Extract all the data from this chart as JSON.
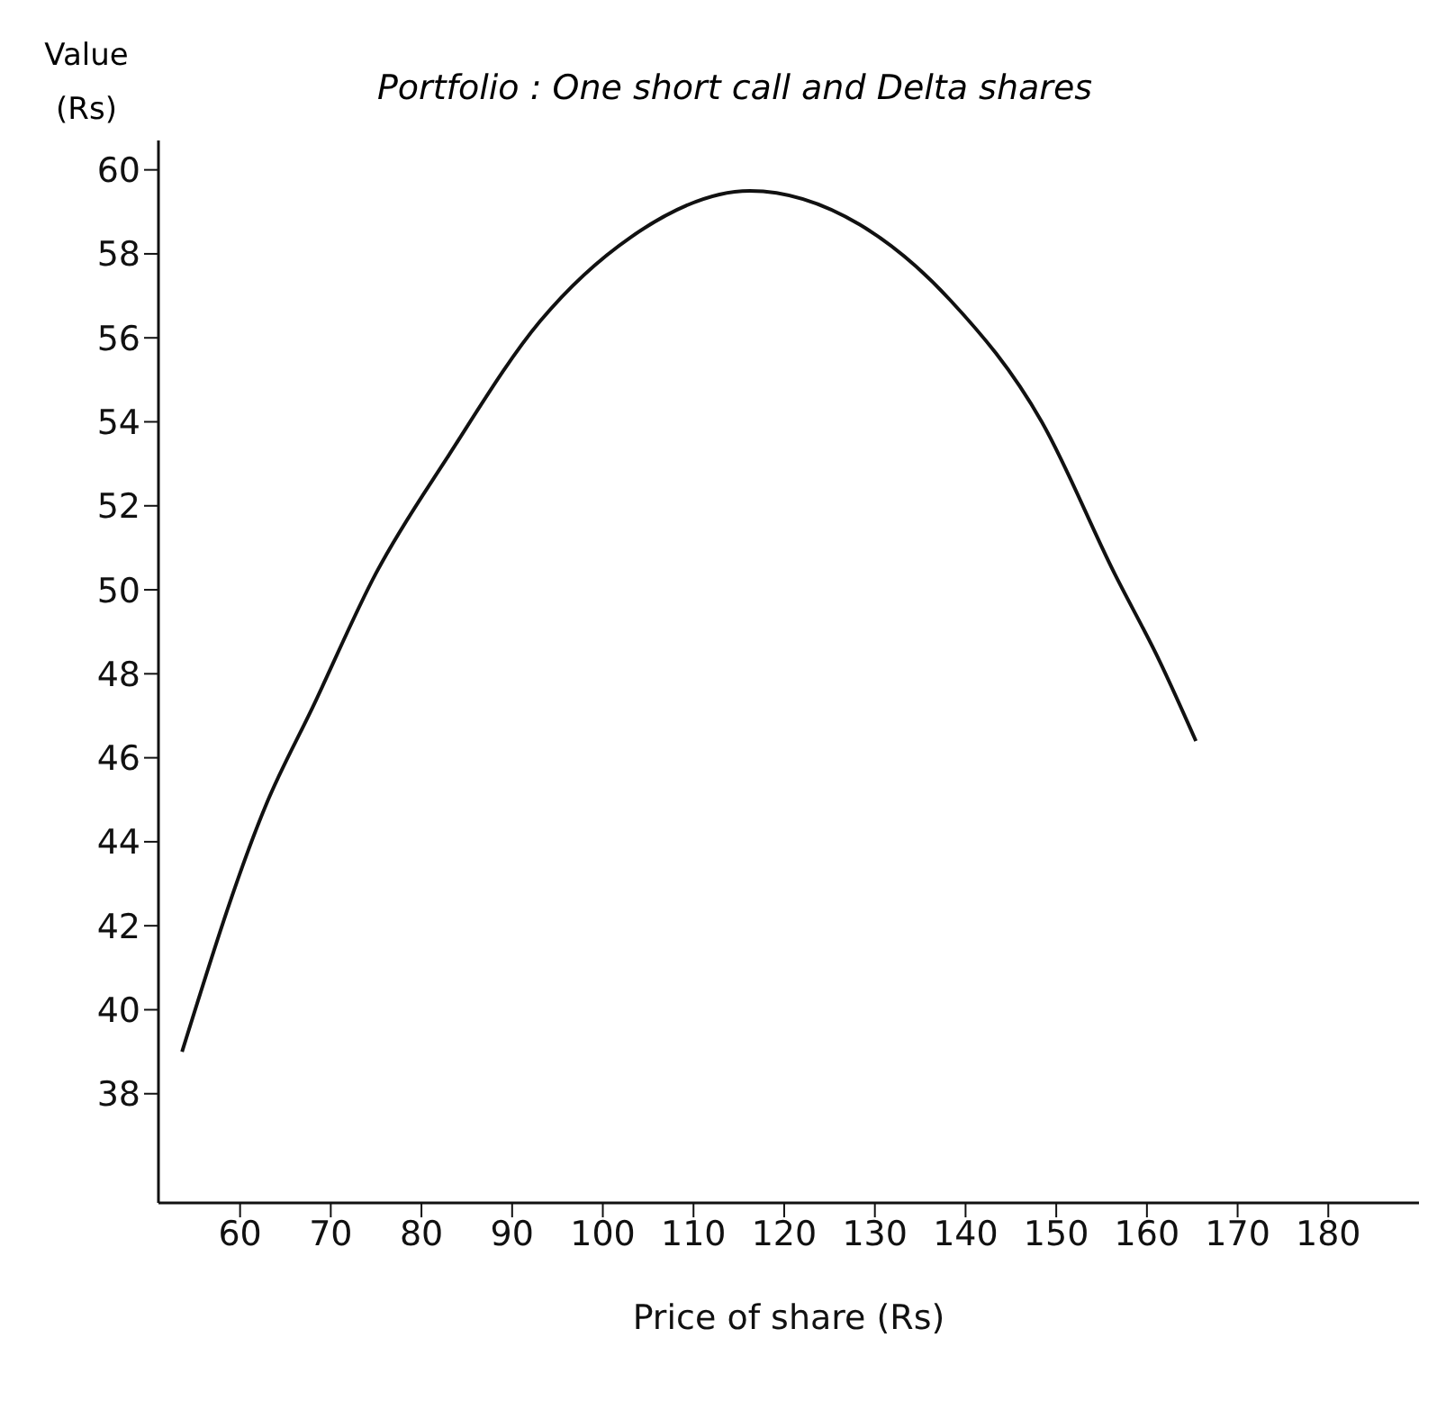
{
  "chart_data": {
    "type": "line",
    "title": "Portfolio : One short call and Delta shares",
    "xlabel": "Price of share (Rs)",
    "ylabel": "Value (Rs)",
    "x": [
      53.6,
      62.9,
      68.0,
      75.0,
      83.0,
      93.1,
      103.1,
      116.2,
      128.3,
      138.3,
      148.4,
      156.4,
      161.4,
      165.4
    ],
    "series": [
      {
        "color": "#111111",
        "values": [
          39.0,
          44.9,
          47.2,
          50.4,
          53.2,
          56.4,
          58.4,
          59.5,
          58.7,
          56.9,
          54.0,
          50.4,
          48.3,
          46.4
        ]
      }
    ],
    "xlim": [
      51,
      190
    ],
    "xticks": [
      60,
      70,
      80,
      90,
      100,
      110,
      120,
      130,
      140,
      150,
      160,
      170,
      180
    ],
    "ylim": [
      35.4,
      60.7
    ],
    "yticks": [
      38,
      40,
      42,
      44,
      46,
      48,
      50,
      52,
      54,
      56,
      58,
      60
    ],
    "grid": false,
    "legend": false,
    "marker": "none",
    "line_style": "solid"
  }
}
